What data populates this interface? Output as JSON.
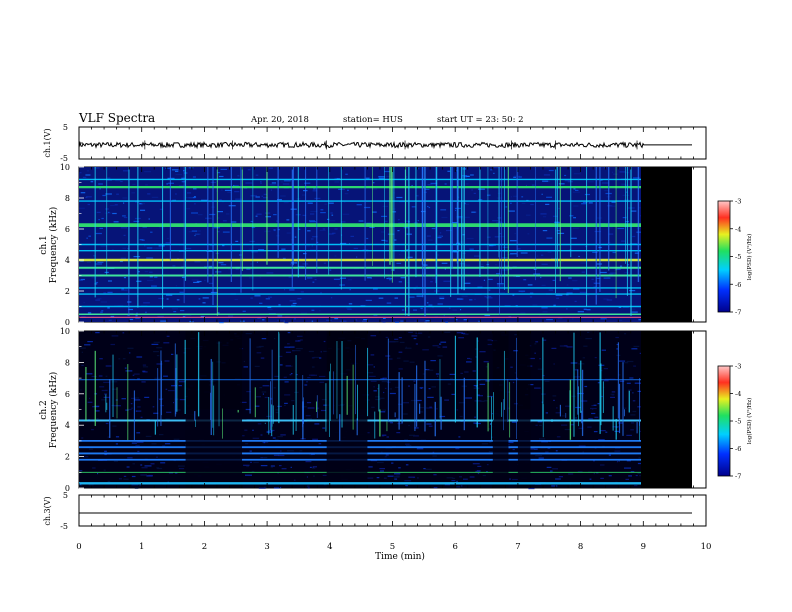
{
  "header": {
    "title": "VLF Spectra",
    "date": "Apr. 20, 2018",
    "station": "station= HUS",
    "start": "start  UT  =   23: 50: 2"
  },
  "colors": {
    "waveform": "#000000",
    "background_dark": "#000000",
    "spectrogram_low": "#00008c",
    "tone_green": "#30e070",
    "tone_yellow": "#d8f040"
  },
  "chart_data": [
    {
      "type": "line",
      "id": "ch1-waveform",
      "ylabel": "ch.1(V)",
      "ylim": [
        -5,
        5
      ],
      "yticks": [
        "5",
        "-5"
      ],
      "xlim": [
        0,
        10
      ],
      "description_data": {
        "amplitude_level": -0.6,
        "data_end_min": 9.0
      }
    },
    {
      "type": "heatmap",
      "id": "ch1-spectrogram",
      "ylabel": "ch.1\nFrequency (kHz)",
      "ylabel_lines": [
        "ch.1",
        "Frequency (kHz)"
      ],
      "ylim": [
        0,
        10
      ],
      "yticks": [
        "0",
        "2",
        "4",
        "6",
        "8",
        "10"
      ],
      "xlim": [
        0,
        10
      ],
      "data_end_min": 9.0,
      "tones_khz": [
        0.3,
        0.5,
        1.0,
        1.8,
        2.2,
        3.0,
        3.5,
        4.0,
        4.6,
        5.0,
        6.2,
        6.3,
        7.8,
        8.7,
        9.2
      ],
      "colorbar": {
        "label": "log(PSD) (V²/Hz)",
        "ticks": [
          "-3",
          "-4",
          "-5",
          "-6",
          "-7"
        ],
        "range": [
          -7,
          -3
        ]
      }
    },
    {
      "type": "heatmap",
      "id": "ch2-spectrogram",
      "ylabel": "ch.2\nFrequency (kHz)",
      "ylabel_lines": [
        "ch.2",
        "Frequency (kHz)"
      ],
      "ylim": [
        0,
        10
      ],
      "yticks": [
        "0",
        "2",
        "4",
        "6",
        "8",
        "10"
      ],
      "xlim": [
        0,
        10
      ],
      "data_end_min": 9.0,
      "tones_khz": [
        0.3,
        1.0,
        1.8,
        2.2,
        2.6,
        3.0,
        4.3,
        6.9
      ],
      "colorbar": {
        "label": "log(PSD) (V²/Hz)",
        "ticks": [
          "-3",
          "-4",
          "-5",
          "-6",
          "-7"
        ],
        "range": [
          -7,
          -3
        ]
      }
    },
    {
      "type": "line",
      "id": "ch3-waveform",
      "ylabel": "ch.3(V)",
      "ylim": [
        -5,
        5
      ],
      "yticks": [
        "5",
        "-5"
      ],
      "xlim": [
        0,
        10
      ],
      "xlabel": "Time  (min)",
      "xticks": [
        "0",
        "1",
        "2",
        "3",
        "4",
        "5",
        "6",
        "7",
        "8",
        "9",
        "10"
      ],
      "description_data": {
        "amplitude_level": -1.5
      }
    }
  ]
}
